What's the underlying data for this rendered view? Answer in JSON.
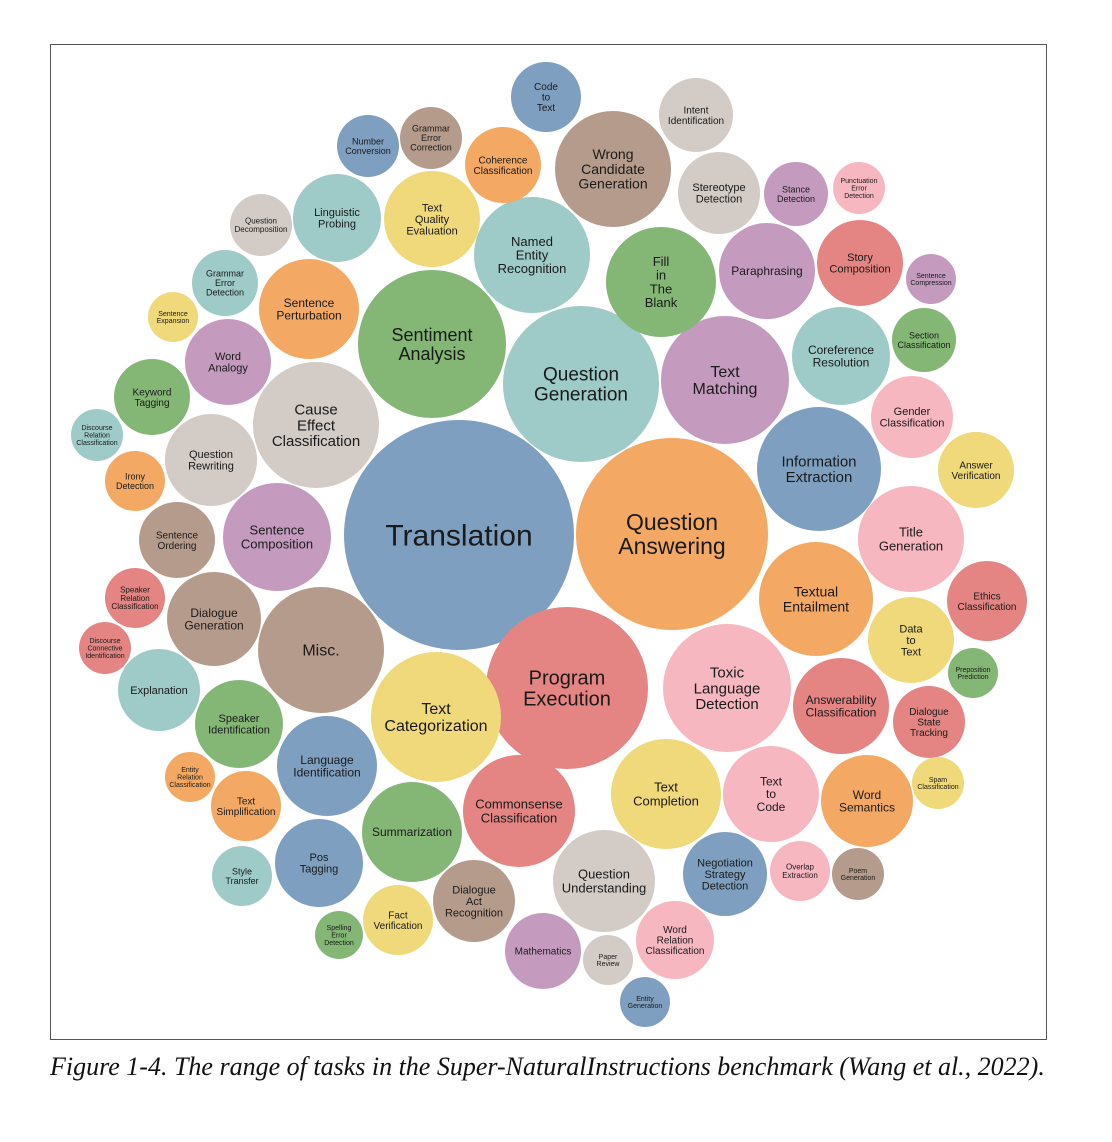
{
  "colors": {
    "blue": "#7f9fc0",
    "orange": "#f3a964",
    "green": "#84b676",
    "teal": "#9ecac7",
    "purple": "#c49bbf",
    "brown": "#b59b8c",
    "grey": "#d2cbc6",
    "yellow": "#f0d97b",
    "red": "#e48483",
    "pink": "#f7b7c1",
    "border": "#555555"
  },
  "caption": "Figure 1-4. The range of tasks in the Super-NaturalInstructions benchmark (Wang et al., 2022).",
  "bubbles": [
    {
      "label": "Translation",
      "color": "blue"
    },
    {
      "label": "Question Answering",
      "color": "orange"
    },
    {
      "label": "Program Execution",
      "color": "red"
    },
    {
      "label": "Question Generation",
      "color": "teal"
    },
    {
      "label": "Sentiment Analysis",
      "color": "green"
    },
    {
      "label": "Text Categorization",
      "color": "yellow"
    },
    {
      "label": "Misc.",
      "color": "brown"
    },
    {
      "label": "Toxic Language Detection",
      "color": "pink"
    },
    {
      "label": "Text Matching",
      "color": "purple"
    },
    {
      "label": "Cause Effect Classification",
      "color": "grey"
    },
    {
      "label": "Information Extraction",
      "color": "blue"
    },
    {
      "label": "Wrong Candidate Generation",
      "color": "brown"
    },
    {
      "label": "Named Entity Recognition",
      "color": "teal"
    },
    {
      "label": "Commonsense Classification",
      "color": "red"
    },
    {
      "label": "Textual Entailment",
      "color": "orange"
    },
    {
      "label": "Title Generation",
      "color": "pink"
    },
    {
      "label": "Text Completion",
      "color": "yellow"
    },
    {
      "label": "Question Understanding",
      "color": "grey"
    },
    {
      "label": "Answerability Classification",
      "color": "red"
    },
    {
      "label": "Fill in The Blank",
      "color": "green"
    },
    {
      "label": "Paraphrasing",
      "color": "purple"
    },
    {
      "label": "Language Identification",
      "color": "blue"
    },
    {
      "label": "Coreference Resolution",
      "color": "teal"
    },
    {
      "label": "Sentence Composition",
      "color": "purple"
    },
    {
      "label": "Summarization",
      "color": "green"
    },
    {
      "label": "Text to Code",
      "color": "pink"
    },
    {
      "label": "Dialogue Generation",
      "color": "brown"
    },
    {
      "label": "Story Composition",
      "color": "red"
    },
    {
      "label": "Word Semantics",
      "color": "orange"
    },
    {
      "label": "Question Rewriting",
      "color": "grey"
    },
    {
      "label": "Sentence Perturbation",
      "color": "orange"
    },
    {
      "label": "Linguistic Probing",
      "color": "teal"
    },
    {
      "label": "Text Quality Evaluation",
      "color": "yellow"
    },
    {
      "label": "Word Analogy",
      "color": "purple"
    },
    {
      "label": "Data to Text",
      "color": "yellow"
    },
    {
      "label": "Pos Tagging",
      "color": "blue"
    },
    {
      "label": "Speaker Identification",
      "color": "green"
    },
    {
      "label": "Stereotype Detection",
      "color": "grey"
    },
    {
      "label": "Dialogue Act Recognition",
      "color": "brown"
    },
    {
      "label": "Negotiation Strategy Detection",
      "color": "blue"
    },
    {
      "label": "Word Relation Classification",
      "color": "pink"
    },
    {
      "label": "Gender Classification",
      "color": "pink"
    },
    {
      "label": "Explanation",
      "color": "teal"
    },
    {
      "label": "Ethics Classification",
      "color": "red"
    },
    {
      "label": "Mathematics",
      "color": "purple"
    },
    {
      "label": "Dialogue State Tracking",
      "color": "red"
    },
    {
      "label": "Coherence Classification",
      "color": "orange"
    },
    {
      "label": "Intent Identification",
      "color": "grey"
    },
    {
      "label": "Sentence Ordering",
      "color": "brown"
    },
    {
      "label": "Answer Verification",
      "color": "yellow"
    },
    {
      "label": "Keyword Tagging",
      "color": "green"
    },
    {
      "label": "Code to Text",
      "color": "blue"
    },
    {
      "label": "Fact Verification",
      "color": "yellow"
    },
    {
      "label": "Text Simplification",
      "color": "orange"
    },
    {
      "label": "Grammar Error Correction",
      "color": "brown"
    },
    {
      "label": "Grammar Error Detection",
      "color": "teal"
    },
    {
      "label": "Stance Detection",
      "color": "purple"
    },
    {
      "label": "Number Conversion",
      "color": "blue"
    },
    {
      "label": "Question Decomposition",
      "color": "grey"
    },
    {
      "label": "Section Classification",
      "color": "green"
    },
    {
      "label": "Style Transfer",
      "color": "teal"
    },
    {
      "label": "Overlap Extraction",
      "color": "pink"
    },
    {
      "label": "Speaker Relation Classification",
      "color": "red"
    },
    {
      "label": "Irony Detection",
      "color": "orange"
    },
    {
      "label": "Spam Classification",
      "color": "yellow"
    },
    {
      "label": "Poem Generation",
      "color": "brown"
    },
    {
      "label": "Punctuation Error Detection",
      "color": "pink"
    },
    {
      "label": "Discourse Relation Classification",
      "color": "teal"
    },
    {
      "label": "Discourse Connective Identification",
      "color": "red"
    },
    {
      "label": "Entity Relation Classification",
      "color": "orange"
    },
    {
      "label": "Sentence Expansion",
      "color": "yellow"
    },
    {
      "label": "Sentence Compression",
      "color": "purple"
    },
    {
      "label": "Preposition Prediction",
      "color": "green"
    },
    {
      "label": "Spelling Error Detection",
      "color": "green"
    },
    {
      "label": "Paper Review",
      "color": "grey"
    },
    {
      "label": "Entity Generation",
      "color": "blue"
    }
  ]
}
